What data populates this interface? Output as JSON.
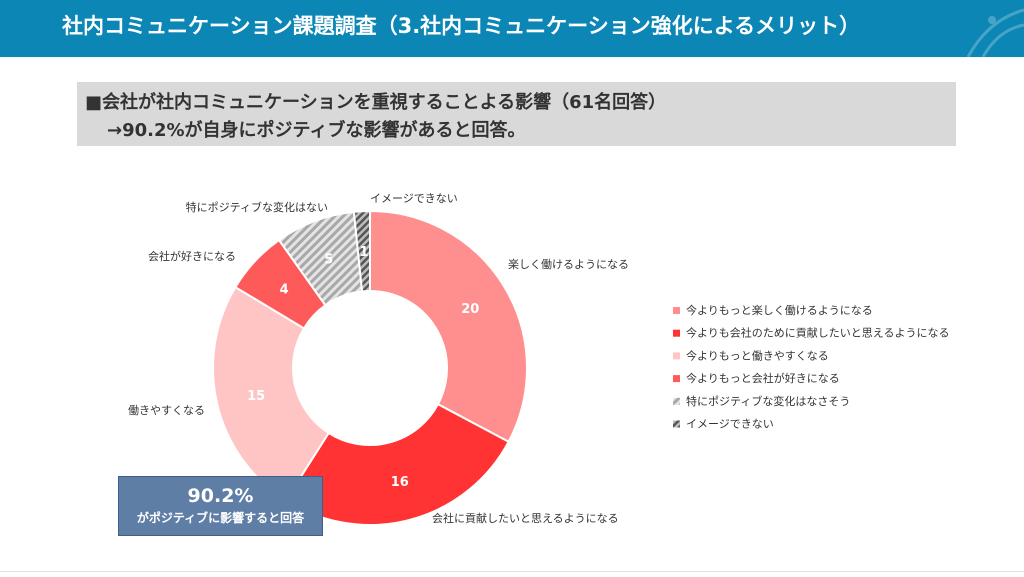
{
  "header": {
    "title": "社内コミュニケーション課題調査（3.社内コミュニケーション強化によるメリット）"
  },
  "summary": {
    "line1": "■会社が社内コミュニケーションを重視することよる影響（61名回答）",
    "line2": "→90.2%が自身にポジティブな影響があると回答。"
  },
  "callout": {
    "percent": "90.2%",
    "text": "がポジティブに影響すると回答"
  },
  "chart_data": {
    "type": "pie",
    "subtype": "donut",
    "title": "",
    "total": 61,
    "slices": [
      {
        "label": "楽しく働けるようになる",
        "legend": "今よりもっと楽しく働けるようになる",
        "value": 20,
        "color": "#ff8f8f",
        "pattern": "solid"
      },
      {
        "label": "会社に貢献したいと思えるようになる",
        "legend": "今よりも会社のために貢献したいと思えるようになる",
        "value": 16,
        "color": "#ff3333",
        "pattern": "solid"
      },
      {
        "label": "働きやすくなる",
        "legend": "今よりもっと働きやすくなる",
        "value": 15,
        "color": "#ffc4c4",
        "pattern": "solid"
      },
      {
        "label": "会社が好きになる",
        "legend": "今よりもっと会社が好きになる",
        "value": 4,
        "color": "#ff5a5a",
        "pattern": "solid"
      },
      {
        "label": "特にポジティブな変化はない",
        "legend": "特にポジティブな変化はなさそう",
        "value": 5,
        "color": "#b5b5b5",
        "pattern": "hatch-light"
      },
      {
        "label": "イメージできない",
        "legend": "イメージできない",
        "value": 1,
        "color": "#8a8a8a",
        "pattern": "hatch-dark"
      }
    ],
    "legend_position": "right"
  }
}
